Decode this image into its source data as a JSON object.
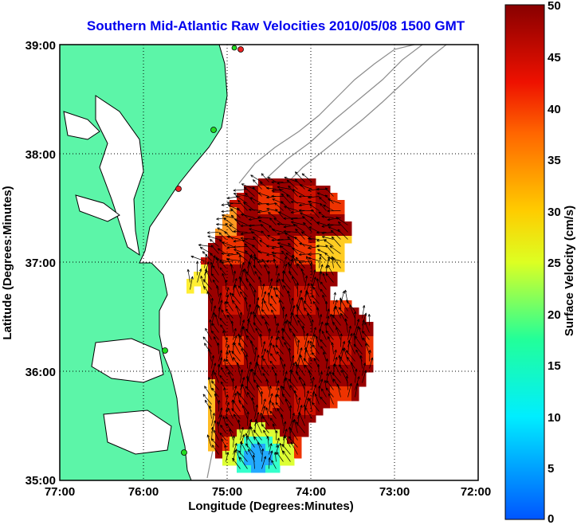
{
  "title": "Southern Mid-Atlantic Raw Velocities 2010/05/08 1500 GMT",
  "map": {
    "xlabel": "Longitude (Degrees:Minutes)",
    "ylabel": "Latitude (Degrees:Minutes)",
    "x_ticks": [
      "77:00",
      "76:00",
      "75:00",
      "74:00",
      "73:00",
      "72:00"
    ],
    "y_ticks": [
      "39:00",
      "38:00",
      "37:00",
      "36:00",
      "35:00"
    ],
    "lon_range": [
      -77,
      -72
    ],
    "lat_range": [
      35,
      39
    ],
    "grid": "dotted"
  },
  "colorbar": {
    "label": "Surface Velocity (cm/s)",
    "ticks": [
      "50",
      "45",
      "40",
      "35",
      "30",
      "25",
      "20",
      "15",
      "10",
      "5",
      "0"
    ],
    "range": [
      0,
      50
    ]
  },
  "colors": {
    "title": "#0000ee",
    "land": "#5cf5a8",
    "coast": "#000000",
    "bathymetry": "#8c8c8c",
    "stations_green": "#22dd22",
    "stations_red": "#ee2222"
  }
}
